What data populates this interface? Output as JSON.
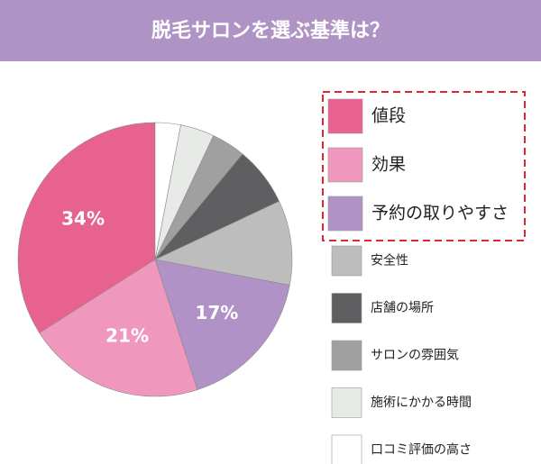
{
  "chart_data": {
    "type": "pie",
    "title": "脱毛サロンを選ぶ基準は？",
    "categories": [
      "値段",
      "効果",
      "予約の取りやすさ",
      "安全性",
      "店舗の場所",
      "サロンの雰囲気",
      "施術にかかる時間",
      "口コミ評価の高さ"
    ],
    "values": [
      34,
      21,
      17,
      10,
      7,
      4,
      4,
      3
    ],
    "value_labels": [
      "34%",
      "21%",
      "17%",
      null,
      null,
      null,
      null,
      null
    ],
    "colors": [
      "#e8628f",
      "#f097be",
      "#b092c6",
      "#bdbdbd",
      "#5f5e60",
      "#a0a0a0",
      "#e8eae8",
      "#ffffff"
    ]
  }
}
